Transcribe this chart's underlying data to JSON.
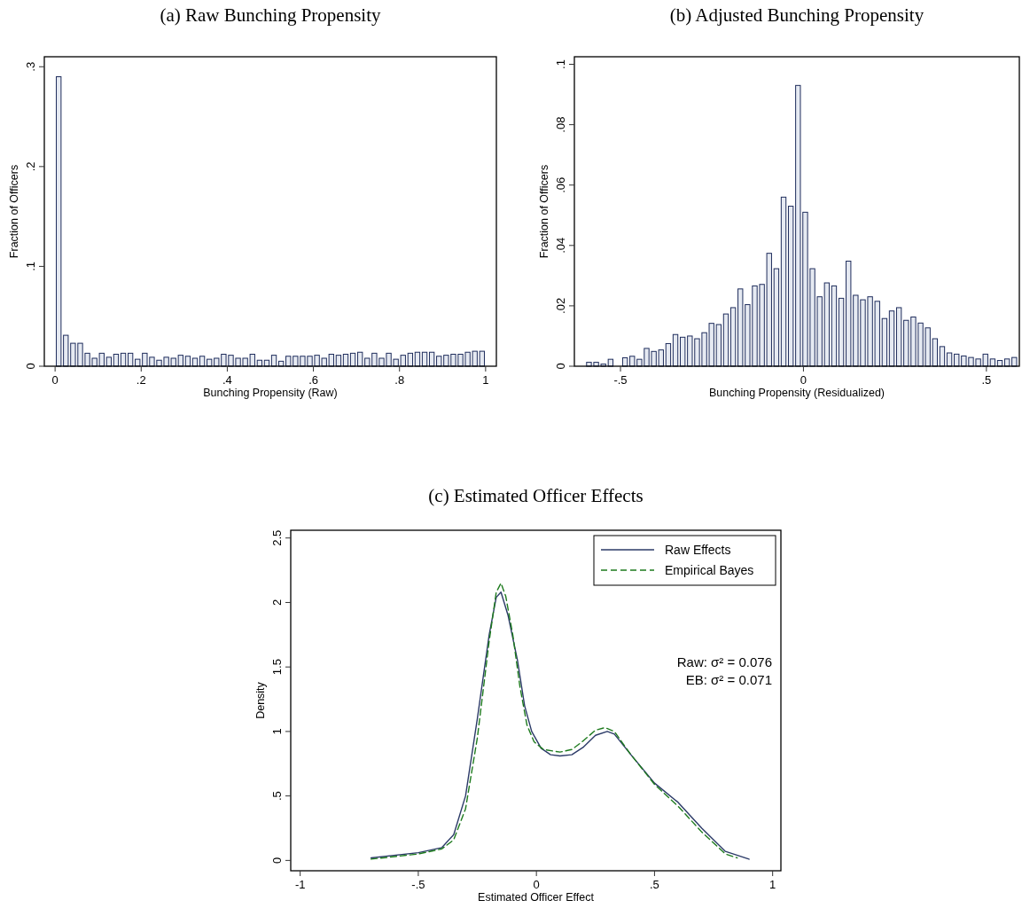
{
  "chart_data": [
    {
      "type": "histogram",
      "title": "(a) Raw Bunching Propensity",
      "xlabel": "Bunching Propensity (Raw)",
      "ylabel": "Fraction of Officers",
      "color": "#e6eaf2",
      "bins": [
        0,
        0.0167,
        0.0333,
        0.05,
        0.0667,
        0.0833,
        0.1,
        0.1167,
        0.1333,
        0.15,
        0.1667,
        0.1833,
        0.2,
        0.2167,
        0.2333,
        0.25,
        0.2667,
        0.2833,
        0.3,
        0.3167,
        0.3333,
        0.35,
        0.3667,
        0.3833,
        0.4,
        0.4167,
        0.4333,
        0.45,
        0.4667,
        0.4833,
        0.5,
        0.5167,
        0.5333,
        0.55,
        0.5667,
        0.5833,
        0.6,
        0.6167,
        0.6333,
        0.65,
        0.6667,
        0.6833,
        0.7,
        0.7167,
        0.7333,
        0.75,
        0.7667,
        0.7833,
        0.8,
        0.8167,
        0.8333,
        0.85,
        0.8667,
        0.8833,
        0.9,
        0.9167,
        0.9333,
        0.95,
        0.9667,
        0.9833,
        1
      ],
      "values": [
        0.29,
        0.031,
        0.023,
        0.023,
        0.013,
        0.008,
        0.013,
        0.009,
        0.012,
        0.013,
        0.013,
        0.007,
        0.013,
        0.009,
        0.006,
        0.009,
        0.008,
        0.011,
        0.01,
        0.008,
        0.01,
        0.007,
        0.008,
        0.012,
        0.011,
        0.008,
        0.008,
        0.012,
        0.006,
        0.006,
        0.011,
        0.005,
        0.01,
        0.01,
        0.01,
        0.01,
        0.011,
        0.008,
        0.012,
        0.011,
        0.012,
        0.013,
        0.014,
        0.008,
        0.013,
        0.008,
        0.013,
        0.007,
        0.011,
        0.013,
        0.014,
        0.014,
        0.014,
        0.01,
        0.011,
        0.012,
        0.012,
        0.014,
        0.015,
        0.015
      ],
      "xlim": [
        -0.025,
        1.025
      ],
      "ylim": [
        0,
        0.31
      ],
      "xticks": [
        0,
        {
          "value": 0.2,
          "label": ".2"
        },
        {
          "value": 0.4,
          "label": ".4"
        },
        {
          "value": 0.6,
          "label": ".6"
        },
        {
          "value": 0.8,
          "label": ".8"
        },
        1
      ],
      "yticks": [
        0,
        {
          "value": 0.1,
          "label": ".1"
        },
        {
          "value": 0.2,
          "label": ".2"
        },
        {
          "value": 0.3,
          "label": ".3"
        }
      ]
    },
    {
      "type": "histogram",
      "title": "(b) Adjusted Bunching Propensity",
      "xlabel": "Bunching Propensity (Residualized)",
      "ylabel": "Fraction of Officers",
      "color": "#e6eaf2",
      "bins": [
        -0.596,
        -0.5763,
        -0.5566,
        -0.5369,
        -0.5172,
        -0.4975,
        -0.4778,
        -0.4581,
        -0.4384,
        -0.4187,
        -0.399,
        -0.3793,
        -0.3596,
        -0.3399,
        -0.3202,
        -0.3005,
        -0.2808,
        -0.2611,
        -0.2414,
        -0.2217,
        -0.202,
        -0.1823,
        -0.1626,
        -0.1429,
        -0.1232,
        -0.1035,
        -0.0838,
        -0.0641,
        -0.0444,
        -0.0247,
        -0.005,
        0.0147,
        0.0344,
        0.0541,
        0.0738,
        0.0935,
        0.1132,
        0.1329,
        0.1526,
        0.1723,
        0.192,
        0.2117,
        0.2314,
        0.2511,
        0.2708,
        0.2905,
        0.3102,
        0.3299,
        0.3496,
        0.3693,
        0.389,
        0.4087,
        0.4284,
        0.4481,
        0.4678,
        0.4875,
        0.5072,
        0.5269,
        0.5466,
        0.5663,
        0.586
      ],
      "values": [
        0.0013,
        0.0013,
        0.0007,
        0.0023,
        null,
        0.0028,
        0.0033,
        0.0023,
        0.0059,
        0.0049,
        0.0054,
        0.0075,
        0.0105,
        0.0096,
        0.01,
        0.0091,
        0.0111,
        0.0142,
        0.0138,
        0.0173,
        0.0194,
        0.0256,
        0.0204,
        0.0266,
        0.0271,
        0.0374,
        0.0323,
        0.056,
        0.053,
        0.093,
        0.051,
        0.0323,
        0.023,
        0.0276,
        0.0266,
        0.0225,
        0.0348,
        0.0235,
        0.022,
        0.023,
        0.0215,
        0.0158,
        0.0183,
        0.0194,
        0.0152,
        0.0163,
        0.0143,
        0.0127,
        0.0091,
        0.0065,
        0.0044,
        0.004,
        0.0034,
        0.0029,
        0.0024,
        0.004,
        0.0024,
        0.0019,
        0.0024,
        0.0029
      ],
      "xlim": [
        -0.626,
        0.59
      ],
      "ylim": [
        0,
        0.1025
      ],
      "xticks": [
        {
          "value": -0.5,
          "label": "-.5"
        },
        0,
        {
          "value": 0.5,
          "label": ".5"
        }
      ],
      "yticks": [
        0,
        {
          "value": 0.02,
          "label": ".02"
        },
        {
          "value": 0.04,
          "label": ".04"
        },
        {
          "value": 0.06,
          "label": ".06"
        },
        {
          "value": 0.08,
          "label": ".08"
        },
        {
          "value": 0.1,
          "label": ".1"
        }
      ]
    },
    {
      "type": "line",
      "title": "(c) Estimated Officer Effects",
      "xlabel": "Estimated Officer Effect",
      "ylabel": "Density",
      "legend": "top right",
      "annotations": [
        "Raw: σ² = 0.076",
        "EB: σ² = 0.071"
      ],
      "series": [
        {
          "name": "Raw Effects",
          "color": "#2b3a67",
          "line_style": "solid",
          "x": [
            -0.7,
            -0.5,
            -0.4,
            -0.35,
            -0.3,
            -0.25,
            -0.2,
            -0.17,
            -0.15,
            -0.12,
            -0.08,
            -0.05,
            -0.02,
            0.02,
            0.06,
            0.1,
            0.15,
            0.2,
            0.25,
            0.3,
            0.33,
            0.4,
            0.5,
            0.6,
            0.7,
            0.8,
            0.9
          ],
          "values": [
            0.02,
            0.06,
            0.1,
            0.2,
            0.5,
            1.1,
            1.75,
            2.04,
            2.08,
            1.9,
            1.55,
            1.2,
            1.0,
            0.87,
            0.82,
            0.81,
            0.82,
            0.88,
            0.97,
            1.0,
            0.98,
            0.82,
            0.6,
            0.45,
            0.25,
            0.07,
            0.01
          ]
        },
        {
          "name": "Empirical Bayes",
          "color": "#1e7b1e",
          "line_style": "dashed",
          "x": [
            -0.7,
            -0.5,
            -0.4,
            -0.35,
            -0.3,
            -0.25,
            -0.2,
            -0.17,
            -0.15,
            -0.13,
            -0.1,
            -0.07,
            -0.04,
            -0.01,
            0.03,
            0.1,
            0.15,
            0.2,
            0.25,
            0.29,
            0.33,
            0.4,
            0.5,
            0.6,
            0.7,
            0.8,
            0.85
          ],
          "values": [
            0.01,
            0.05,
            0.09,
            0.16,
            0.4,
            0.95,
            1.7,
            2.08,
            2.15,
            2.05,
            1.75,
            1.35,
            1.05,
            0.92,
            0.86,
            0.84,
            0.86,
            0.93,
            1.01,
            1.03,
            1.0,
            0.82,
            0.59,
            0.42,
            0.22,
            0.05,
            0.02
          ]
        }
      ],
      "xlim": [
        -1.04,
        1.035
      ],
      "ylim": [
        -0.08,
        2.56
      ],
      "xticks": [
        -1,
        {
          "value": -0.5,
          "label": "-.5"
        },
        0,
        {
          "value": 0.5,
          "label": ".5"
        },
        1
      ],
      "yticks": [
        0,
        {
          "value": 0.5,
          "label": ".5"
        },
        1,
        1.5,
        2,
        2.5
      ]
    }
  ]
}
